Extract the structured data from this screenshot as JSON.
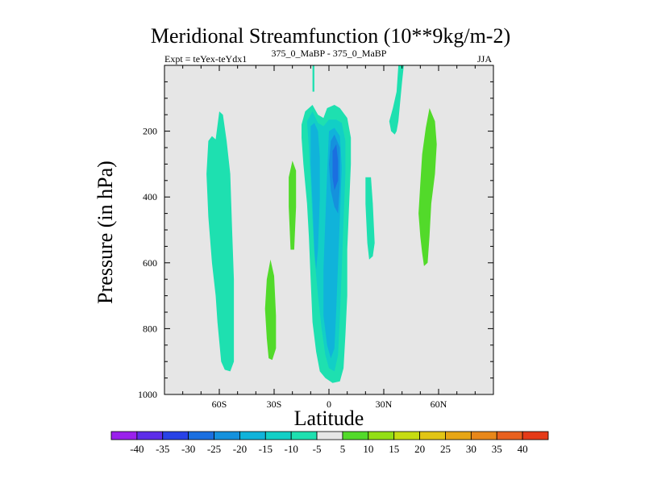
{
  "chart_data": {
    "type": "contour",
    "title": "Meridional Streamfunction (10**9kg/m-2)",
    "left_label": "Expt = teYex-teYdx1",
    "center_label": "375_0_MaBP - 375_0_MaBP",
    "right_label": "JJA",
    "xlabel": "Latitude",
    "ylabel": "Pressure (in hPa)",
    "xlim": [
      -90,
      90
    ],
    "ylim": [
      1000,
      0
    ],
    "x_ticks": [
      {
        "value": -60,
        "label": "60S"
      },
      {
        "value": -30,
        "label": "30S"
      },
      {
        "value": 0,
        "label": "0"
      },
      {
        "value": 30,
        "label": "30N"
      },
      {
        "value": 60,
        "label": "60N"
      }
    ],
    "y_ticks": [
      {
        "value": 200,
        "label": "200"
      },
      {
        "value": 400,
        "label": "400"
      },
      {
        "value": 600,
        "label": "600"
      },
      {
        "value": 800,
        "label": "800"
      },
      {
        "value": 1000,
        "label": "1000"
      }
    ],
    "background_color": "#e6e6e6",
    "colorbar": {
      "levels": [
        "-40",
        "-35",
        "-30",
        "-25",
        "-20",
        "-15",
        "-10",
        "-5",
        "5",
        "10",
        "15",
        "20",
        "25",
        "30",
        "35",
        "40"
      ],
      "colors": [
        "#9a20ec",
        "#5d2de8",
        "#2842e6",
        "#1b6fe0",
        "#1591dd",
        "#10b3da",
        "#12cfc6",
        "#1ee0b0",
        "#e6e6e6",
        "#52da2a",
        "#93df15",
        "#c6dc12",
        "#e2c515",
        "#e7a615",
        "#e8871a",
        "#e8601e",
        "#e53a18"
      ]
    },
    "regions": [
      {
        "name": "sh-polar-cell",
        "level": -5,
        "points": [
          [
            -66,
            230
          ],
          [
            -64,
            215
          ],
          [
            -62,
            225
          ],
          [
            -60,
            140
          ],
          [
            -58,
            150
          ],
          [
            -56,
            230
          ],
          [
            -54,
            330
          ],
          [
            -53,
            500
          ],
          [
            -52,
            650
          ],
          [
            -52,
            780
          ],
          [
            -52,
            900
          ],
          [
            -54,
            930
          ],
          [
            -57,
            925
          ],
          [
            -59,
            900
          ],
          [
            -60,
            840
          ],
          [
            -61,
            780
          ],
          [
            -62,
            700
          ],
          [
            -64,
            600
          ],
          [
            -66,
            460
          ],
          [
            -67,
            330
          ]
        ]
      },
      {
        "name": "sh-subtropical-positive",
        "level": 5,
        "points": [
          [
            -32,
            590
          ],
          [
            -30,
            640
          ],
          [
            -29,
            760
          ],
          [
            -29,
            860
          ],
          [
            -31,
            895
          ],
          [
            -33,
            890
          ],
          [
            -34,
            830
          ],
          [
            -35,
            740
          ],
          [
            -34,
            650
          ]
        ]
      },
      {
        "name": "narrow-positive-15s",
        "level": 5,
        "points": [
          [
            -20,
            290
          ],
          [
            -18,
            320
          ],
          [
            -18,
            430
          ],
          [
            -19,
            560
          ],
          [
            -21,
            560
          ],
          [
            -22,
            430
          ],
          [
            -22,
            340
          ]
        ]
      },
      {
        "name": "hadley-outer",
        "level": -5,
        "points": [
          [
            -15,
            180
          ],
          [
            -13,
            140
          ],
          [
            -9,
            120
          ],
          [
            -6,
            150
          ],
          [
            -3,
            160
          ],
          [
            -1,
            130
          ],
          [
            3,
            120
          ],
          [
            6,
            130
          ],
          [
            10,
            160
          ],
          [
            12,
            220
          ],
          [
            12,
            300
          ],
          [
            11,
            430
          ],
          [
            10,
            560
          ],
          [
            10,
            700
          ],
          [
            9,
            820
          ],
          [
            8,
            920
          ],
          [
            6,
            960
          ],
          [
            2,
            965
          ],
          [
            -2,
            950
          ],
          [
            -5,
            930
          ],
          [
            -7,
            870
          ],
          [
            -9,
            780
          ],
          [
            -10,
            650
          ],
          [
            -11,
            520
          ],
          [
            -12,
            420
          ],
          [
            -14,
            300
          ],
          [
            -15,
            220
          ]
        ]
      },
      {
        "name": "hadley-mid",
        "level": -10,
        "points": [
          [
            -12,
            170
          ],
          [
            -9,
            140
          ],
          [
            -6,
            175
          ],
          [
            -3,
            185
          ],
          [
            0,
            165
          ],
          [
            4,
            165
          ],
          [
            7,
            175
          ],
          [
            9,
            230
          ],
          [
            9,
            330
          ],
          [
            8,
            470
          ],
          [
            7,
            620
          ],
          [
            6,
            760
          ],
          [
            5,
            880
          ],
          [
            3,
            930
          ],
          [
            0,
            920
          ],
          [
            -2,
            880
          ],
          [
            -4,
            800
          ],
          [
            -6,
            700
          ],
          [
            -8,
            580
          ],
          [
            -9,
            470
          ],
          [
            -10,
            350
          ],
          [
            -11,
            250
          ]
        ]
      },
      {
        "name": "hadley-core-a",
        "level": -15,
        "points": [
          [
            -10,
            185
          ],
          [
            -8,
            175
          ],
          [
            -6,
            200
          ],
          [
            -5,
            280
          ],
          [
            -5,
            400
          ],
          [
            -6,
            560
          ],
          [
            -7,
            620
          ],
          [
            -8,
            560
          ],
          [
            -9,
            420
          ],
          [
            -10,
            300
          ]
        ]
      },
      {
        "name": "hadley-core-b",
        "level": -15,
        "points": [
          [
            0,
            200
          ],
          [
            3,
            190
          ],
          [
            6,
            215
          ],
          [
            7,
            310
          ],
          [
            6,
            460
          ],
          [
            5,
            600
          ],
          [
            4,
            740
          ],
          [
            3,
            860
          ],
          [
            1,
            890
          ],
          [
            -1,
            850
          ],
          [
            -3,
            760
          ],
          [
            -3,
            620
          ],
          [
            -2,
            470
          ],
          [
            -1,
            330
          ]
        ]
      },
      {
        "name": "hadley-core-c",
        "level": -20,
        "points": [
          [
            1,
            230
          ],
          [
            3,
            210
          ],
          [
            6,
            250
          ],
          [
            6,
            360
          ],
          [
            5,
            450
          ],
          [
            3,
            430
          ],
          [
            1,
            380
          ],
          [
            0,
            300
          ]
        ]
      },
      {
        "name": "hadley-core-d",
        "level": -25,
        "points": [
          [
            2,
            260
          ],
          [
            4,
            240
          ],
          [
            5,
            290
          ],
          [
            5,
            350
          ],
          [
            3,
            380
          ],
          [
            2,
            340
          ]
        ]
      },
      {
        "name": "top-plume-0",
        "level": -5,
        "points": [
          [
            -9,
            0
          ],
          [
            -8,
            0
          ],
          [
            -8,
            80
          ],
          [
            -9,
            80
          ]
        ]
      },
      {
        "name": "nh-tropics-negative",
        "level": -5,
        "points": [
          [
            20,
            340
          ],
          [
            23,
            340
          ],
          [
            24,
            420
          ],
          [
            25,
            540
          ],
          [
            24,
            580
          ],
          [
            22,
            590
          ],
          [
            21,
            540
          ],
          [
            20,
            420
          ]
        ]
      },
      {
        "name": "nh-top-plume",
        "level": -5,
        "points": [
          [
            38,
            0
          ],
          [
            41,
            0
          ],
          [
            40,
            50
          ],
          [
            39,
            110
          ],
          [
            38,
            170
          ],
          [
            37,
            200
          ],
          [
            36,
            210
          ],
          [
            34,
            200
          ],
          [
            33,
            170
          ],
          [
            35,
            130
          ],
          [
            37,
            80
          ]
        ]
      },
      {
        "name": "nh-ferrel-positive",
        "level": 5,
        "points": [
          [
            55,
            130
          ],
          [
            58,
            170
          ],
          [
            59,
            240
          ],
          [
            58,
            330
          ],
          [
            56,
            420
          ],
          [
            55,
            520
          ],
          [
            54,
            600
          ],
          [
            52,
            610
          ],
          [
            51,
            570
          ],
          [
            50,
            520
          ],
          [
            49,
            450
          ],
          [
            50,
            360
          ],
          [
            51,
            270
          ],
          [
            53,
            190
          ]
        ]
      }
    ]
  }
}
